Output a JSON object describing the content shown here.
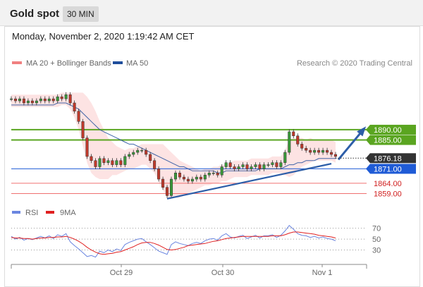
{
  "header": {
    "title": "Gold spot",
    "timeframe": "30 MIN"
  },
  "timestamp": "Monday, November 2, 2020 1:19:42 AM CET",
  "legend": {
    "bollinger": "MA 20 + Bollinger Bands",
    "ma50": "MA 50",
    "credit": "Research © 2020 Trading Central",
    "rsi": "RSI",
    "rsi_ma": "9MA"
  },
  "colors": {
    "candle_up": "#3a9a3a",
    "candle_down": "#c0392b",
    "bollinger_fill": "#fde0e0",
    "bollinger_legend": "#f08080",
    "ma50": "#1f4e9c",
    "resistance": "#5aa520",
    "support": "#1f5bd6",
    "support_minor": "#f07070",
    "arrow": "#2d5ea8",
    "rsi": "#6b86e0",
    "rsi_ma": "#e02020"
  },
  "chart_data": [
    {
      "type": "candlestick",
      "title": "Gold spot",
      "y_range": [
        1853,
        1916
      ],
      "x_ticks": [
        "Oct 29",
        "Oct 30",
        "Nov 1"
      ],
      "current_price": 1876.18,
      "levels": [
        {
          "label": "1890.00",
          "value": 1890.0,
          "kind": "resistance"
        },
        {
          "label": "1885.00",
          "value": 1885.0,
          "kind": "resistance"
        },
        {
          "label": "1876.18",
          "value": 1876.18,
          "kind": "current"
        },
        {
          "label": "1871.00",
          "value": 1871.0,
          "kind": "support"
        },
        {
          "label": "1864.00",
          "value": 1864.0,
          "kind": "support_minor"
        },
        {
          "label": "1859.00",
          "value": 1859.0,
          "kind": "support_minor"
        }
      ],
      "close_series": [
        1905,
        1904,
        1905,
        1903,
        1904,
        1903,
        1904,
        1905,
        1904,
        1905,
        1904,
        1906,
        1905,
        1907,
        1903,
        1899,
        1894,
        1886,
        1877,
        1875,
        1872,
        1876,
        1874,
        1875,
        1873,
        1875,
        1873,
        1877,
        1878,
        1879,
        1880,
        1880,
        1878,
        1875,
        1871,
        1866,
        1862,
        1858,
        1866,
        1869,
        1867,
        1866,
        1865,
        1866,
        1867,
        1866,
        1868,
        1869,
        1869,
        1868,
        1872,
        1874,
        1872,
        1871,
        1872,
        1873,
        1871,
        1872,
        1873,
        1871,
        1873,
        1873,
        1874,
        1872,
        1874,
        1879,
        1889,
        1887,
        1883,
        1881,
        1880,
        1879,
        1880,
        1879,
        1880,
        1879,
        1878,
        1877
      ],
      "ma50": [
        1902,
        1902,
        1902,
        1902,
        1902,
        1902,
        1902,
        1902,
        1902,
        1902,
        1902,
        1903,
        1903,
        1903,
        1902,
        1901,
        1900,
        1898,
        1896,
        1894,
        1892,
        1890,
        1889,
        1888,
        1887,
        1886,
        1885,
        1884,
        1883,
        1883,
        1882,
        1881,
        1880,
        1879,
        1878,
        1877,
        1876,
        1875,
        1874,
        1873,
        1872,
        1872,
        1871,
        1870,
        1870,
        1870,
        1870,
        1870,
        1870,
        1869,
        1869,
        1870,
        1870,
        1870,
        1870,
        1870,
        1870,
        1870,
        1870,
        1871,
        1871,
        1871,
        1871,
        1871,
        1871,
        1872,
        1873,
        1873,
        1874,
        1874,
        1875,
        1875,
        1875,
        1876,
        1876,
        1876,
        1876,
        1876
      ],
      "bollinger_mid": [
        1904,
        1904,
        1904,
        1904,
        1904,
        1904,
        1904,
        1904,
        1904,
        1904,
        1904,
        1904,
        1905,
        1905,
        1904,
        1902,
        1899,
        1895,
        1890,
        1886,
        1883,
        1880,
        1878,
        1876,
        1876,
        1875,
        1875,
        1875,
        1876,
        1876,
        1877,
        1878,
        1878,
        1877,
        1876,
        1874,
        1872,
        1869,
        1868,
        1867,
        1866,
        1866,
        1866,
        1866,
        1866,
        1866,
        1867,
        1867,
        1868,
        1868,
        1869,
        1869,
        1870,
        1871,
        1871,
        1871,
        1871,
        1872,
        1872,
        1872,
        1872,
        1872,
        1873,
        1873,
        1873,
        1874,
        1876,
        1877,
        1878,
        1879,
        1879,
        1880,
        1880,
        1880,
        1880,
        1880,
        1880,
        1879
      ],
      "bollinger_width": [
        3,
        3,
        3,
        3,
        3,
        3,
        3,
        3,
        3,
        3,
        3,
        3,
        3,
        3,
        4,
        6,
        9,
        13,
        16,
        17,
        16,
        14,
        12,
        10,
        8,
        7,
        6,
        5,
        5,
        5,
        5,
        5,
        5,
        6,
        7,
        9,
        11,
        12,
        11,
        10,
        9,
        8,
        7,
        6,
        5,
        4,
        4,
        4,
        4,
        4,
        4,
        4,
        4,
        4,
        4,
        4,
        4,
        4,
        4,
        4,
        4,
        4,
        4,
        4,
        4,
        6,
        9,
        9,
        8,
        7,
        6,
        6,
        5,
        5,
        5,
        5,
        5,
        5
      ]
    },
    {
      "type": "line",
      "title": "RSI",
      "y_range": [
        10,
        85
      ],
      "y_ticks": [
        "70",
        "50",
        "30"
      ],
      "series": [
        {
          "name": "RSI",
          "values": [
            55,
            50,
            53,
            48,
            51,
            49,
            52,
            55,
            52,
            56,
            51,
            58,
            55,
            60,
            45,
            38,
            32,
            25,
            18,
            20,
            17,
            28,
            25,
            30,
            27,
            32,
            29,
            40,
            44,
            47,
            50,
            51,
            45,
            40,
            34,
            28,
            25,
            22,
            40,
            45,
            42,
            40,
            38,
            42,
            44,
            42,
            47,
            50,
            51,
            48,
            56,
            60,
            54,
            52,
            55,
            57,
            51,
            54,
            57,
            52,
            56,
            56,
            58,
            53,
            57,
            65,
            75,
            68,
            60,
            57,
            56,
            53,
            55,
            52,
            54,
            51,
            50,
            47
          ]
        },
        {
          "name": "9MA",
          "values": [
            53,
            52,
            52,
            51,
            51,
            50,
            51,
            52,
            52,
            53,
            53,
            54,
            54,
            55,
            53,
            50,
            46,
            41,
            35,
            30,
            26,
            23,
            22,
            23,
            24,
            26,
            27,
            30,
            33,
            36,
            40,
            43,
            44,
            44,
            42,
            39,
            35,
            31,
            30,
            31,
            33,
            35,
            38,
            39,
            40,
            41,
            42,
            44,
            46,
            47,
            49,
            51,
            52,
            53,
            54,
            55,
            55,
            55,
            55,
            55,
            55,
            55,
            56,
            56,
            56,
            58,
            61,
            63,
            63,
            62,
            61,
            60,
            59,
            57,
            56,
            55,
            54,
            52
          ]
        }
      ]
    }
  ]
}
